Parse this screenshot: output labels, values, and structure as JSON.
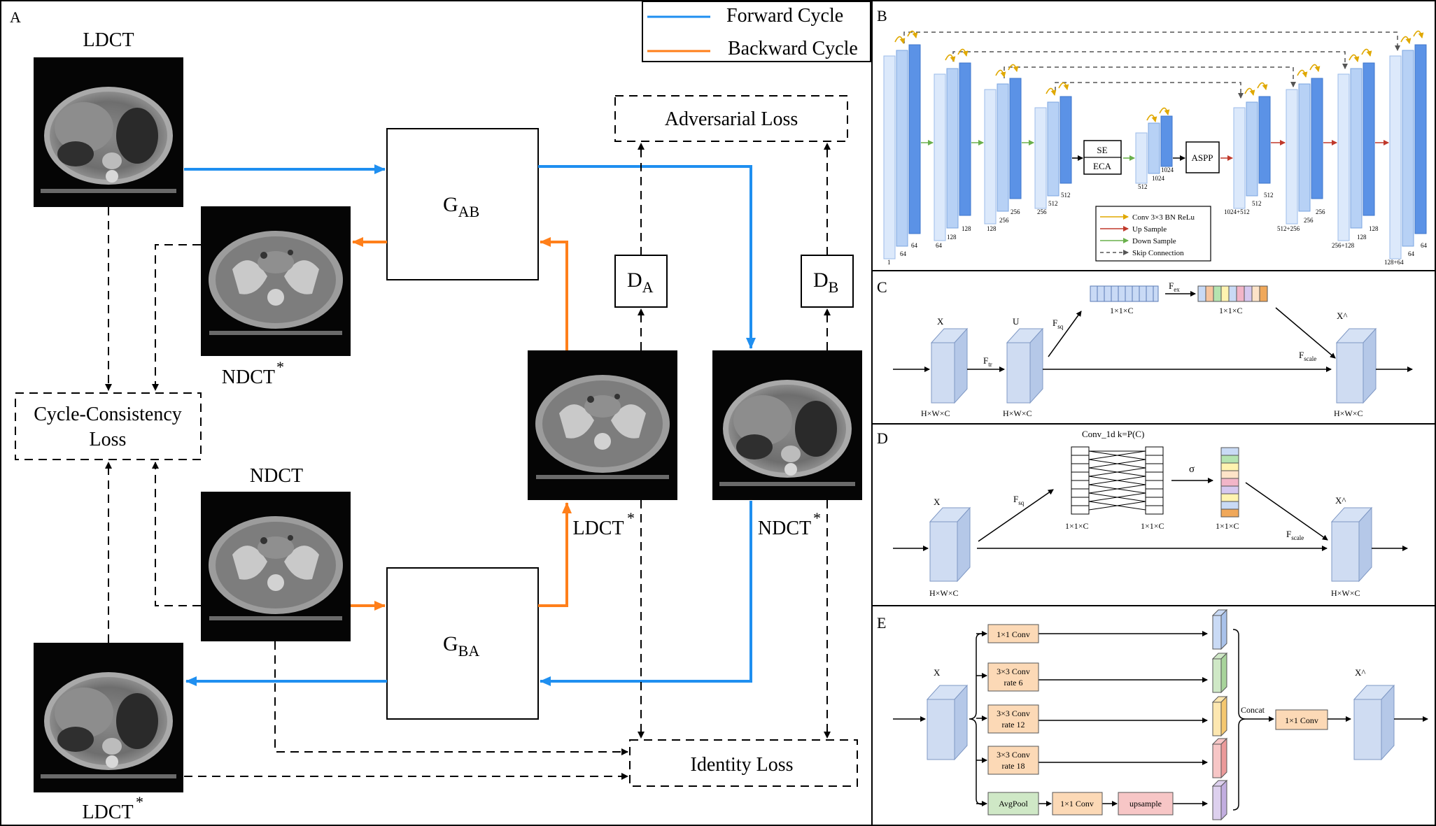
{
  "panels": {
    "A": "A",
    "B": "B",
    "C": "C",
    "D": "D",
    "E": "E"
  },
  "legend": {
    "forward": "Forward Cycle",
    "backward": "Backward Cycle",
    "forward_color": "#1f8ff0",
    "backward_color": "#ff7f1a"
  },
  "panel_a": {
    "ldct": "LDCT",
    "ndct": "NDCT",
    "star": "*",
    "adversarial_loss": "Adversarial Loss",
    "cycle_loss_line1": "Cycle-Consistency",
    "cycle_loss_line2": "Loss",
    "identity_loss": "Identity Loss",
    "g_ab_main": "G",
    "g_ab_sub": "AB",
    "g_ba_main": "G",
    "g_ba_sub": "BA",
    "d_a_main": "D",
    "d_a_sub": "A",
    "d_b_main": "D",
    "d_b_sub": "B"
  },
  "panel_b": {
    "se": "SE",
    "eca": "ECA",
    "aspp": "ASPP",
    "enc_labels": {
      "e1a": "1",
      "e1b": "64",
      "e1c": "64",
      "e2a": "64",
      "e2b": "128",
      "e2c": "128",
      "e3a": "128",
      "e3b": "256",
      "e3c": "256",
      "e4a": "256",
      "e4b": "512",
      "e4c": "512",
      "bot_a": "512",
      "bot_b": "1024",
      "bot_c": "1024"
    },
    "dec_labels": {
      "d4a": "1024+512",
      "d4b": "512",
      "d4c": "512",
      "d3a": "512+256",
      "d3b": "256",
      "d3c": "256",
      "d2a": "256+128",
      "d2b": "128",
      "d2c": "128",
      "d1a": "128+64",
      "d1b": "64",
      "d1c": "64"
    },
    "legend": {
      "conv": "Conv 3×3 BN ReLu",
      "up": "Up Sample",
      "down": "Down Sample",
      "skip": "Skip Connection"
    }
  },
  "panel_c": {
    "x": "X",
    "u": "U",
    "xhat": "X^",
    "f_tr": "F",
    "f_tr_sub": "tr",
    "f_sq": "F",
    "f_sq_sub": "sq",
    "f_ex": "F",
    "f_ex_sub": "ex",
    "f_scale": "F",
    "f_scale_sub": "scale",
    "hwc1": "H×W×C",
    "hwc2": "H×W×C",
    "hwc3": "H×W×C",
    "vec1": "1×1×C",
    "vec2": "1×1×C"
  },
  "panel_d": {
    "x": "X",
    "xhat": "X^",
    "conv1d": "Conv_1d  k=P(C)",
    "sigma": "σ",
    "f_sq": "F",
    "f_sq_sub": "sq",
    "f_scale": "F",
    "f_scale_sub": "scale",
    "hwc1": "H×W×C",
    "hwc2": "H×W×C",
    "vec1": "1×1×C",
    "vec2": "1×1×C",
    "vec3": "1×1×C"
  },
  "panel_e": {
    "x": "X",
    "xhat": "X^",
    "conv1": "1×1 Conv",
    "conv3_6_l1": "3×3 Conv",
    "conv3_6_l2": "rate 6",
    "conv3_12_l1": "3×3 Conv",
    "conv3_12_l2": "rate 12",
    "conv3_18_l1": "3×3 Conv",
    "conv3_18_l2": "rate 18",
    "avgpool": "AvgPool",
    "pool_conv": "1×1 Conv",
    "upsample": "upsample",
    "concat": "Concat",
    "out_conv": "1×1 Conv"
  }
}
